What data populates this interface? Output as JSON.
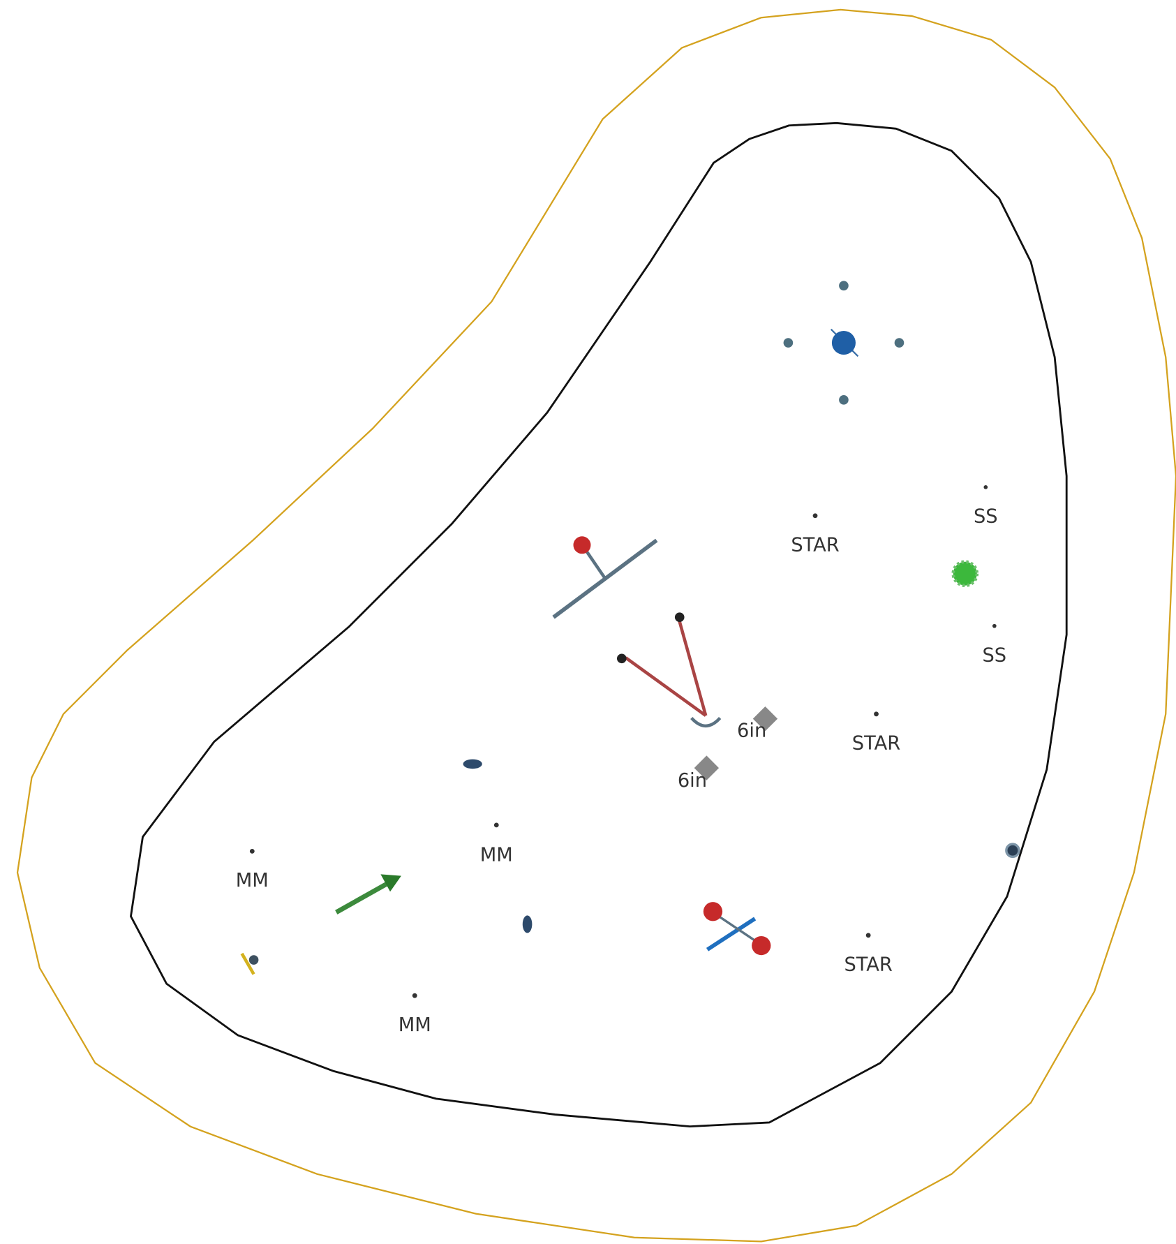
{
  "labels": [
    "STAR",
    "SS",
    "SS",
    "STAR",
    "6in",
    "6in",
    "MM",
    "MM",
    "MM",
    "STAR"
  ]
}
